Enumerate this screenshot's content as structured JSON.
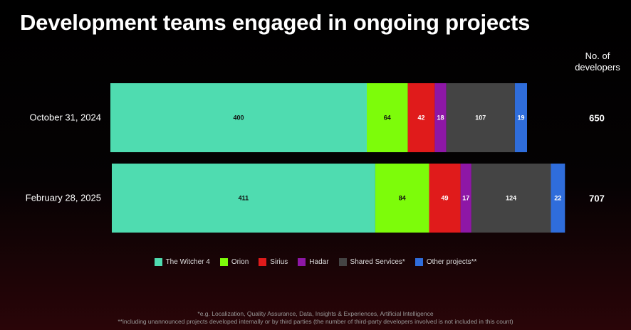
{
  "title": "Development teams engaged in ongoing projects",
  "total_header": {
    "line1": "No. of",
    "line2": "developers"
  },
  "chart_data": {
    "type": "bar",
    "orientation": "horizontal",
    "stacked": true,
    "categories": [
      "October 31, 2024",
      "February 28, 2025"
    ],
    "series": [
      {
        "name": "The Witcher 4",
        "color": "#4fdcb0",
        "values": [
          400,
          411
        ]
      },
      {
        "name": "Orion",
        "color": "#7dfc0a",
        "values": [
          64,
          84
        ]
      },
      {
        "name": "Sirius",
        "color": "#e01b1b",
        "values": [
          42,
          49
        ]
      },
      {
        "name": "Hadar",
        "color": "#8e17a6",
        "values": [
          18,
          17
        ]
      },
      {
        "name": "Shared Services*",
        "color": "#444444",
        "values": [
          107,
          124
        ]
      },
      {
        "name": "Other projects**",
        "color": "#2f6ddb",
        "values": [
          19,
          22
        ]
      }
    ],
    "totals": [
      650,
      707
    ],
    "legend_position": "bottom-center",
    "grid": false
  },
  "footnotes": [
    "*e.g. Localization, Quality Assurance, Data, Insights & Experiences, Artificial Intelligence",
    "**including unannounced projects developed internally or by third parties (the number of third-party developers involved is not included in this count)"
  ]
}
